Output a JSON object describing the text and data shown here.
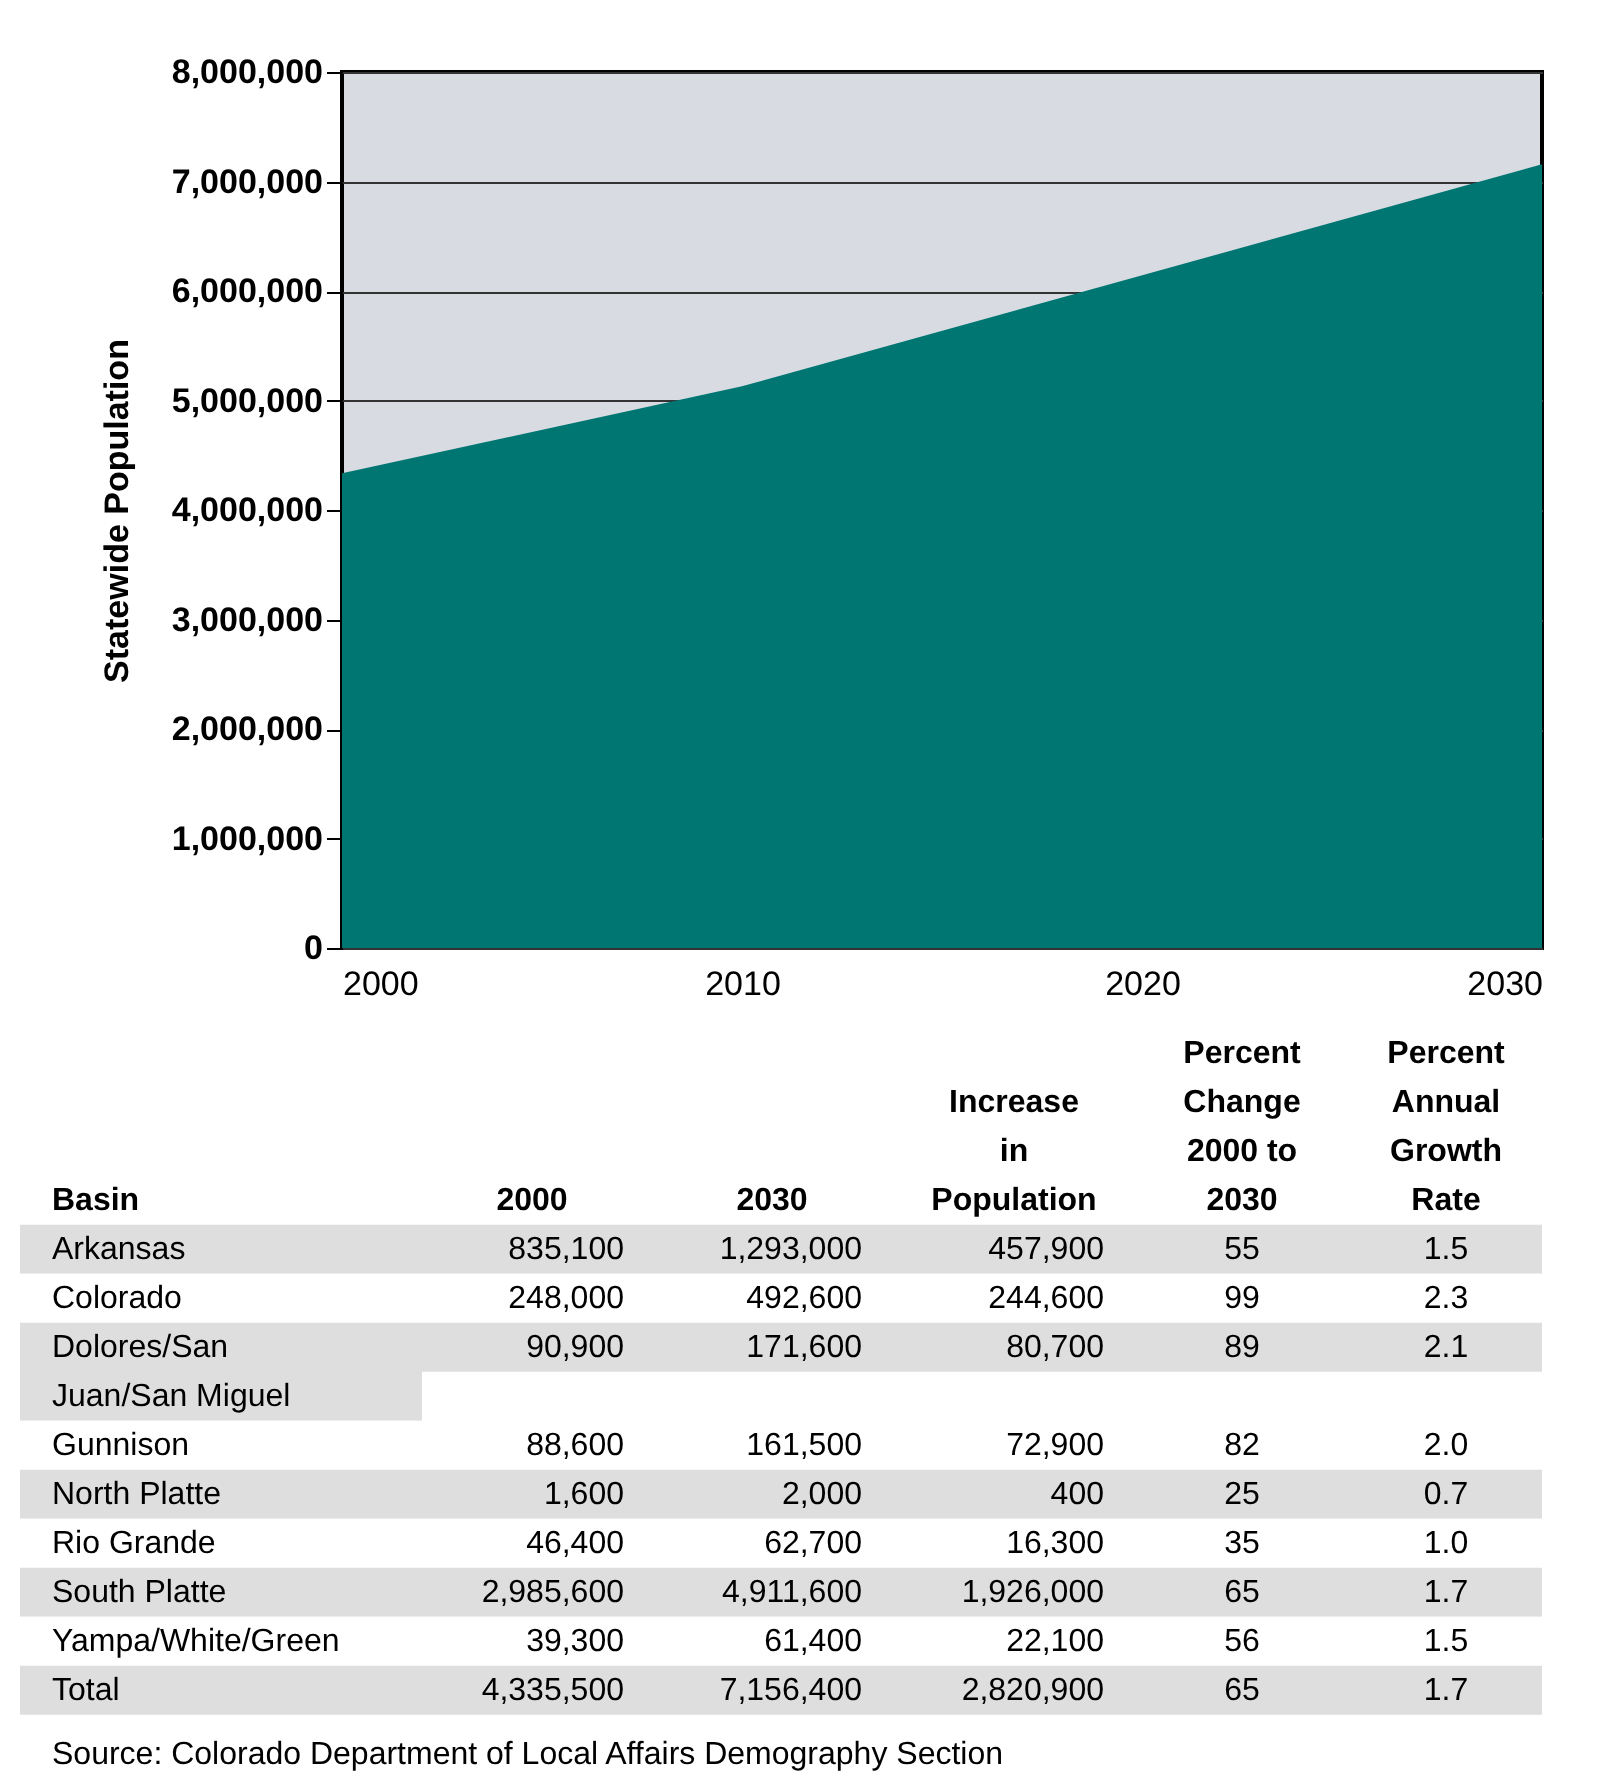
{
  "chart_data": [
    {
      "type": "area",
      "ylabel": "Statewide Population",
      "x": [
        2000,
        2010,
        2030
      ],
      "values": [
        4335500,
        5130000,
        7156400
      ],
      "color": "#007672",
      "xlim": [
        2000,
        2030
      ],
      "ylim": [
        0,
        8000000
      ],
      "xticks": [
        2000,
        2010,
        2020,
        2030
      ],
      "yticks": [
        0,
        {
          "value": 1000000,
          "label": "1,000,000"
        },
        {
          "value": 2000000,
          "label": "2,000,000"
        },
        {
          "value": 3000000,
          "label": "3,000,000"
        },
        {
          "value": 4000000,
          "label": "4,000,000"
        },
        {
          "value": 5000000,
          "label": "5,000,000"
        },
        {
          "value": 6000000,
          "label": "6,000,000"
        },
        {
          "value": 7000000,
          "label": "7,000,000"
        },
        {
          "value": 8000000,
          "label": "8,000,000"
        }
      ],
      "grid": "y"
    },
    {
      "type": "heatmap",
      "ylabel": "Basin",
      "categories": [
        "2000",
        "2030",
        "Increase in Population",
        "Percent Change 2000 to 2030",
        "Percent Annual Growth Rate"
      ],
      "y_categories": [
        "Arkansas",
        "Colorado",
        "Dolores/San Juan/San Miguel",
        "Gunnison",
        "North Platte",
        "Rio Grande",
        "South Platte",
        "Yampa/White/Green",
        "Total"
      ],
      "cells": [
        [
          835100,
          1293000,
          457900,
          55,
          1.5
        ],
        [
          248000,
          492600,
          244600,
          99,
          2.3
        ],
        [
          90900,
          171600,
          80700,
          89,
          2.1
        ],
        [
          88600,
          161500,
          72900,
          82,
          2.0
        ],
        [
          1600,
          2000,
          400,
          25,
          0.7
        ],
        [
          46400,
          62700,
          16300,
          35,
          1.0
        ],
        [
          2985600,
          4911600,
          1926000,
          65,
          1.7
        ],
        [
          39300,
          61400,
          22100,
          56,
          1.5
        ],
        [
          4335500,
          7156400,
          2820900,
          65,
          1.7
        ]
      ],
      "data_labels": true,
      "cell_labels": [
        [
          "835,100",
          "1,293,000",
          "457,900",
          "55",
          "1.5"
        ],
        [
          "248,000",
          "492,600",
          "244,600",
          "99",
          "2.3"
        ],
        [
          "90,900",
          "171,600",
          "80,700",
          "89",
          "2.1"
        ],
        [
          "88,600",
          "161,500",
          "72,900",
          "82",
          "2.0"
        ],
        [
          "1,600",
          "2,000",
          "400",
          "25",
          "0.7"
        ],
        [
          "46,400",
          "62,700",
          "16,300",
          "35",
          "1.0"
        ],
        [
          "2,985,600",
          "4,911,600",
          "1,926,000",
          "65",
          "1.7"
        ],
        [
          "39,300",
          "61,400",
          "22,100",
          "56",
          "1.5"
        ],
        [
          "4,335,500",
          "7,156,400",
          "2,820,900",
          "65",
          "1.7"
        ]
      ],
      "annotations": [
        "Source: Colorado Department of Local Affairs Demography Section"
      ]
    }
  ]
}
